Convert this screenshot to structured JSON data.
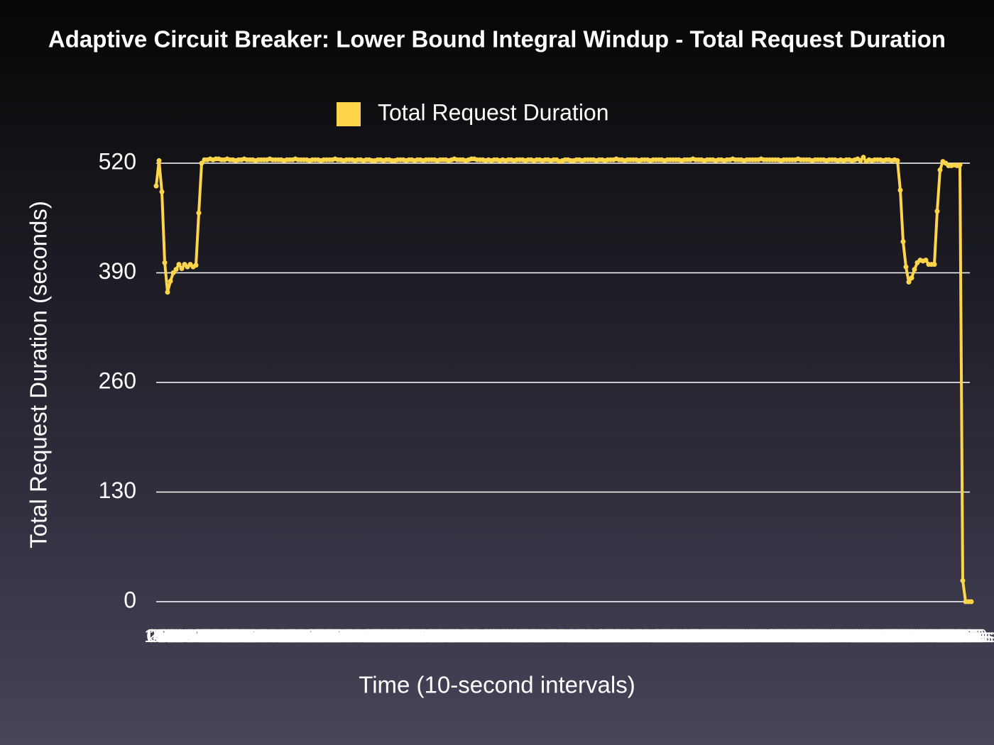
{
  "chart_data": {
    "type": "line",
    "title": "Adaptive Circuit Breaker: Lower Bound Integral Windup - Total Request Duration",
    "xlabel": "Time (10-second intervals)",
    "ylabel": "Total Request Duration (seconds)",
    "legend": "top",
    "grid": true,
    "ylim": [
      0,
      520
    ],
    "yticks": [
      0,
      130,
      260,
      390,
      520
    ],
    "categories": [
      "0s",
      "10s",
      "20s",
      "30s",
      "40s",
      "50s",
      "60s",
      "70s",
      "80s",
      "90s",
      "100s",
      "110s",
      "120s",
      "130s",
      "140s",
      "150s",
      "160s",
      "170s",
      "180s",
      "190s",
      "200s",
      "210s",
      "220s",
      "230s",
      "240s",
      "250s",
      "260s",
      "270s",
      "280s",
      "290s",
      "300s",
      "310s",
      "320s",
      "330s",
      "340s",
      "350s",
      "360s",
      "370s",
      "380s",
      "390s",
      "400s",
      "410s",
      "420s",
      "430s",
      "440s",
      "450s",
      "460s",
      "470s",
      "480s",
      "490s",
      "500s",
      "510s",
      "520s",
      "530s",
      "540s",
      "550s",
      "560s",
      "570s",
      "580s",
      "590s",
      "600s",
      "610s",
      "620s",
      "630s",
      "640s",
      "650s",
      "660s",
      "670s",
      "680s",
      "690s",
      "700s",
      "710s",
      "720s",
      "730s",
      "740s",
      "750s",
      "760s",
      "770s",
      "780s",
      "790s",
      "800s",
      "810s",
      "820s",
      "830s",
      "840s",
      "850s",
      "860s",
      "870s",
      "880s",
      "890s",
      "900s",
      "910s",
      "920s",
      "930s",
      "940s",
      "950s",
      "960s",
      "970s",
      "980s",
      "990s",
      "1000s",
      "1010s",
      "1020s",
      "1030s",
      "1040s",
      "1050s",
      "1060s",
      "1070s",
      "1080s",
      "1090s",
      "1100s",
      "1110s",
      "1120s",
      "1130s",
      "1140s",
      "1150s",
      "1160s",
      "1170s",
      "1180s",
      "1190s",
      "1200s",
      "1210s",
      "1220s",
      "1230s",
      "1240s",
      "1250s",
      "1260s",
      "1270s",
      "1280s",
      "1290s",
      "1300s",
      "1310s",
      "1320s",
      "1330s",
      "1340s",
      "1350s",
      "1360s",
      "1370s",
      "1380s",
      "1390s",
      "1400s",
      "1410s",
      "1420s",
      "1430s",
      "1440s",
      "1450s",
      "1460s",
      "1470s",
      "1480s",
      "1490s",
      "1500s",
      "1510s",
      "1520s",
      "1530s",
      "1540s",
      "1550s",
      "1560s",
      "1570s",
      "1580s",
      "1590s",
      "1600s",
      "1610s",
      "1620s",
      "1630s",
      "1640s",
      "1650s",
      "1660s",
      "1670s",
      "1680s",
      "1690s",
      "1700s",
      "1710s",
      "1720s",
      "1730s",
      "1740s",
      "1750s",
      "1760s",
      "1770s",
      "1780s",
      "1790s",
      "1800s",
      "1810s",
      "1820s",
      "1830s",
      "1840s",
      "1850s",
      "1860s",
      "1870s",
      "1880s",
      "1890s",
      "1900s",
      "1910s",
      "1920s",
      "1930s",
      "1940s",
      "1950s",
      "1960s",
      "1970s",
      "1980s",
      "1990s",
      "2000s",
      "2010s",
      "2020s",
      "2030s",
      "2040s",
      "2050s",
      "2060s",
      "2070s",
      "2080s",
      "2090s",
      "2100s",
      "2110s",
      "2120s",
      "2130s",
      "2140s",
      "2150s",
      "2160s",
      "2170s",
      "2180s",
      "2190s",
      "2200s",
      "2210s",
      "2220s",
      "2230s",
      "2240s",
      "2250s",
      "2260s",
      "2270s",
      "2280s",
      "2290s",
      "2300s",
      "2310s",
      "2320s",
      "2330s",
      "2340s",
      "2350s",
      "2360s",
      "2370s",
      "2380s",
      "2390s",
      "2400s",
      "2410s",
      "2420s",
      "2430s",
      "2440s",
      "2450s",
      "2460s",
      "2470s",
      "2480s",
      "2490s",
      "2500s",
      "2510s",
      "2520s",
      "2530s",
      "2540s",
      "2550s",
      "2560s",
      "2570s",
      "2580s",
      "2590s",
      "2600s",
      "2610s",
      "2620s",
      "2630s",
      "2640s",
      "2650s",
      "2660s",
      "2670s",
      "2680s",
      "2690s",
      "2700s",
      "2710s",
      "2720s",
      "2730s",
      "2740s",
      "2750s",
      "2760s",
      "2770s",
      "2780s",
      "2790s",
      "2800s",
      "2810s",
      "2820s",
      "2830s",
      "2840s",
      "2850s",
      "2860s",
      "2870s"
    ],
    "series": [
      {
        "name": "Total Request Duration",
        "color": "#fdd54b",
        "values": [
          493,
          523,
          486,
          402,
          367,
          380,
          390,
          394,
          400,
          395,
          400,
          397,
          400,
          397,
          399,
          461,
          520,
          524,
          524,
          525,
          524,
          525,
          525,
          524,
          524,
          525,
          524,
          524,
          523,
          524,
          524,
          525,
          524,
          524,
          524,
          523,
          524,
          524,
          524,
          524,
          525,
          524,
          524,
          524,
          524,
          523,
          524,
          524,
          524,
          525,
          524,
          524,
          524,
          524,
          523,
          524,
          524,
          524,
          523,
          524,
          524,
          524,
          524,
          525,
          524,
          524,
          523,
          524,
          524,
          524,
          523,
          524,
          524,
          523,
          524,
          524,
          523,
          523,
          524,
          524,
          523,
          524,
          524,
          523,
          523,
          524,
          524,
          524,
          523,
          524,
          524,
          523,
          524,
          524,
          523,
          524,
          524,
          524,
          524,
          523,
          524,
          524,
          524,
          523,
          524,
          525,
          524,
          524,
          524,
          523,
          524,
          525,
          525,
          524,
          524,
          524,
          523,
          524,
          523,
          524,
          524,
          523,
          524,
          523,
          524,
          524,
          523,
          524,
          524,
          524,
          523,
          524,
          524,
          523,
          524,
          524,
          523,
          524,
          524,
          523,
          524,
          524,
          522,
          523,
          524,
          524,
          523,
          523,
          524,
          524,
          523,
          524,
          524,
          524,
          524,
          523,
          524,
          524,
          523,
          524,
          524,
          524,
          525,
          524,
          524,
          523,
          524,
          524,
          524,
          524,
          523,
          524,
          524,
          524,
          523,
          524,
          524,
          524,
          524,
          523,
          524,
          524,
          524,
          524,
          524,
          523,
          524,
          524,
          524,
          525,
          524,
          524,
          524,
          523,
          524,
          524,
          524,
          523,
          524,
          524,
          523,
          524,
          524,
          525,
          524,
          524,
          524,
          523,
          524,
          524,
          524,
          524,
          524,
          525,
          524,
          524,
          524,
          524,
          524,
          524,
          523,
          524,
          524,
          524,
          524,
          524,
          525,
          524,
          524,
          524,
          524,
          523,
          524,
          524,
          524,
          524,
          523,
          524,
          524,
          524,
          523,
          524,
          523,
          524,
          524,
          523,
          524,
          525,
          523,
          527,
          522,
          524,
          523,
          524,
          524,
          524,
          523,
          524,
          524,
          523,
          524,
          523,
          488,
          427,
          397,
          379,
          384,
          394,
          402,
          405,
          404,
          405,
          400,
          400,
          400,
          463,
          512,
          522,
          520,
          517,
          517,
          518,
          517,
          518,
          25,
          0,
          0,
          0
        ]
      }
    ]
  }
}
